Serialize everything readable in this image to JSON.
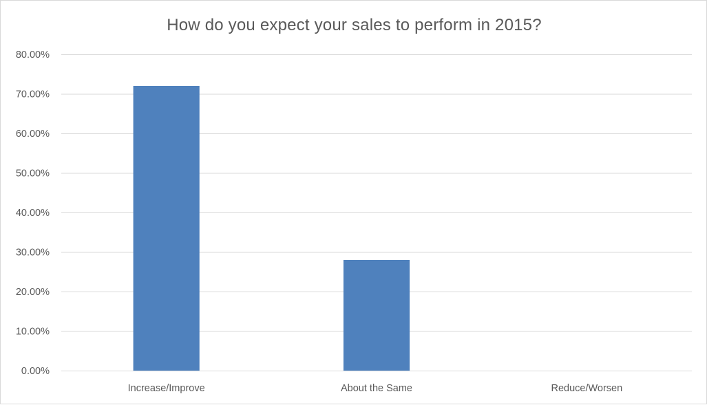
{
  "chart_data": {
    "type": "bar",
    "title": "How do you expect your sales to perform in 2015?",
    "categories": [
      "Increase/Improve",
      "About the Same",
      "Reduce/Worsen"
    ],
    "values": [
      72.0,
      28.0,
      0.0
    ],
    "value_format": "percent",
    "xlabel": "",
    "ylabel": "",
    "ylim": [
      0,
      80
    ],
    "y_ticks": [
      "0.00%",
      "10.00%",
      "20.00%",
      "30.00%",
      "40.00%",
      "50.00%",
      "60.00%",
      "70.00%",
      "80.00%"
    ],
    "grid": true,
    "legend": "none",
    "bar_color": "#4f81bd",
    "gridline_color": "#d9d9d9"
  }
}
